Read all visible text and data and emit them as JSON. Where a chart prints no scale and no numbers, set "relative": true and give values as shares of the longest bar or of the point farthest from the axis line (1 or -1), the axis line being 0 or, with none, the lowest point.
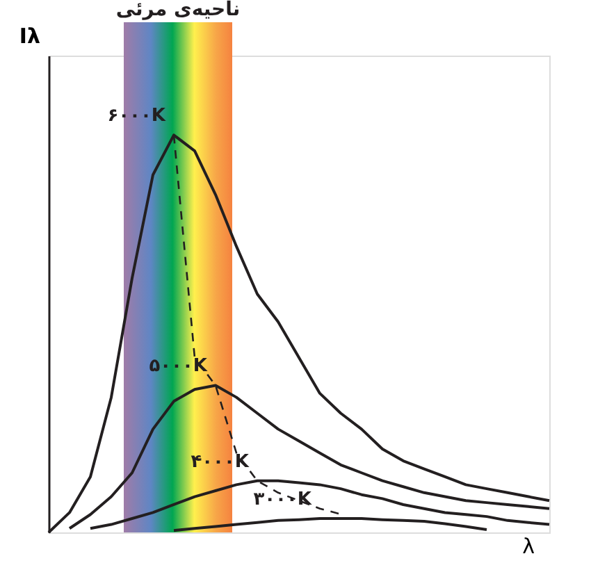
{
  "chart_data": {
    "type": "line",
    "relative": true,
    "xlabel": "λ",
    "ylabel": "Iλ",
    "grid": false,
    "annotations": [
      "ناحیه‌ی مرئی"
    ],
    "categories": [
      null,
      null,
      null,
      null,
      null,
      null,
      null,
      null,
      null,
      null,
      null,
      null,
      null,
      null,
      null,
      null,
      null,
      null,
      null,
      null,
      null,
      null,
      null,
      null,
      null
    ],
    "series": [
      {
        "name": "۶۰۰۰K",
        "color": "#231f20",
        "line_style": "solid",
        "values": [
          0,
          0.05,
          0.14,
          0.34,
          0.64,
          0.9,
          1.0,
          0.96,
          0.85,
          0.72,
          0.6,
          0.53,
          0.44,
          0.35,
          0.3,
          0.26,
          0.21,
          0.18,
          0.16,
          0.14,
          0.12,
          0.11,
          0.1,
          0.09,
          0.08
        ]
      },
      {
        "name": "۵۰۰۰K",
        "color": "#231f20",
        "line_style": "solid",
        "values": [
          null,
          0.01,
          0.045,
          0.09,
          0.15,
          0.26,
          0.33,
          0.36,
          0.37,
          0.34,
          0.3,
          0.26,
          0.23,
          0.2,
          0.17,
          0.15,
          0.13,
          0.115,
          0.1,
          0.09,
          0.08,
          0.075,
          0.07,
          0.065,
          0.06
        ]
      },
      {
        "name": "۴۰۰۰K",
        "color": "#231f20",
        "line_style": "solid",
        "values": [
          null,
          null,
          0.01,
          0.02,
          0.035,
          0.05,
          0.07,
          0.09,
          0.105,
          0.12,
          0.13,
          0.13,
          0.125,
          0.12,
          0.11,
          0.095,
          0.085,
          0.07,
          0.06,
          0.05,
          0.045,
          0.04,
          0.03,
          0.025,
          0.02
        ]
      },
      {
        "name": "۳۰۰۰K",
        "color": "#231f20",
        "line_style": "solid",
        "values": [
          null,
          null,
          null,
          null,
          null,
          null,
          0.005,
          0.01,
          0.015,
          0.02,
          0.025,
          0.03,
          0.032,
          0.035,
          0.035,
          0.035,
          0.032,
          0.03,
          0.028,
          0.022,
          0.015,
          0.007,
          null,
          null,
          null
        ]
      },
      {
        "color": "#231f20",
        "line_style": "dashed",
        "values": [
          null,
          null,
          null,
          null,
          null,
          null,
          1.0,
          0.44,
          0.37,
          0.2,
          0.13,
          0.1,
          0.08,
          0.06,
          0.046,
          null,
          null,
          null,
          null,
          null,
          null,
          null,
          null,
          null,
          null
        ]
      }
    ]
  }
}
